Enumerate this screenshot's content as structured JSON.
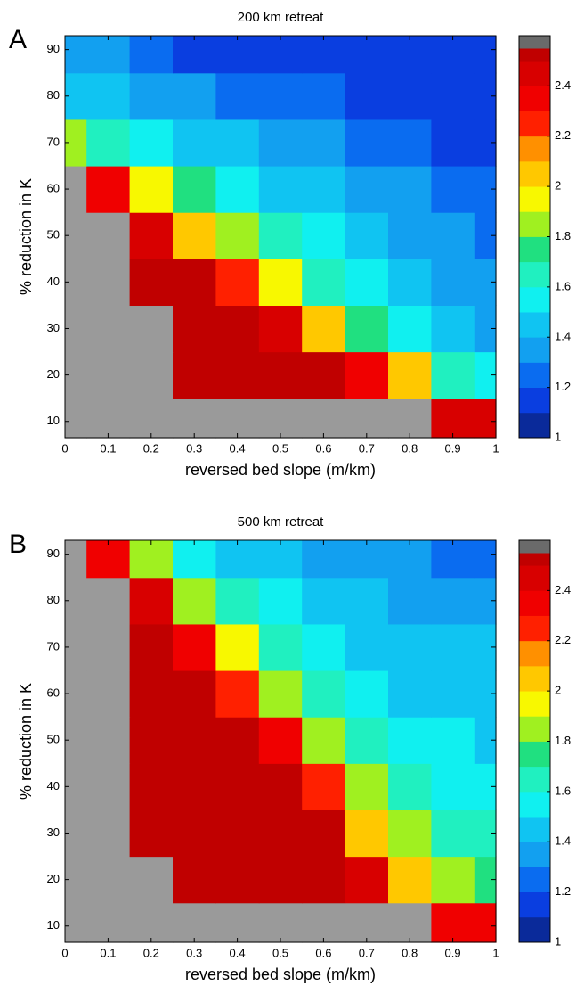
{
  "chart_data": [
    {
      "type": "contour",
      "panel_label": "A",
      "title": "200 km retreat",
      "x_label": "reversed bed slope (m/km)",
      "y_label": "% reduction in K",
      "x": [
        0,
        0.1,
        0.2,
        0.3,
        0.4,
        0.5,
        0.6,
        0.7,
        0.8,
        0.9,
        1
      ],
      "y": [
        10,
        20,
        30,
        40,
        50,
        60,
        70,
        80,
        90
      ],
      "z": [
        [
          2.6,
          2.6,
          2.6,
          2.6,
          2.6,
          2.6,
          2.6,
          2.6,
          2.6,
          2.4,
          2.4
        ],
        [
          2.6,
          2.6,
          2.6,
          2.52,
          2.52,
          2.52,
          2.52,
          2.3,
          2.0,
          1.6,
          1.5
        ],
        [
          2.6,
          2.6,
          2.6,
          2.52,
          2.52,
          2.4,
          2.0,
          1.7,
          1.5,
          1.4,
          1.3
        ],
        [
          2.6,
          2.6,
          2.52,
          2.52,
          2.2,
          1.9,
          1.6,
          1.5,
          1.4,
          1.3,
          1.3
        ],
        [
          2.6,
          2.6,
          2.4,
          2.0,
          1.8,
          1.6,
          1.5,
          1.4,
          1.3,
          1.3,
          1.2
        ],
        [
          2.6,
          2.3,
          1.9,
          1.7,
          1.5,
          1.4,
          1.4,
          1.3,
          1.3,
          1.2,
          1.2
        ],
        [
          1.8,
          1.6,
          1.5,
          1.4,
          1.4,
          1.3,
          1.3,
          1.2,
          1.2,
          1.1,
          1.1
        ],
        [
          1.4,
          1.4,
          1.3,
          1.3,
          1.2,
          1.2,
          1.2,
          1.1,
          1.1,
          1.1,
          1.1
        ],
        [
          1.3,
          1.3,
          1.2,
          1.1,
          1.1,
          1.1,
          1.1,
          1.1,
          1.1,
          1.1,
          1.1
        ]
      ],
      "xlim": [
        0,
        1
      ],
      "ylim": [
        6.5,
        93
      ],
      "xticks": [
        0,
        0.1,
        0.2,
        0.3,
        0.4,
        0.5,
        0.6,
        0.7,
        0.8,
        0.9,
        1
      ],
      "yticks": [
        10,
        20,
        30,
        40,
        50,
        60,
        70,
        80,
        90
      ],
      "colorbar": {
        "levels": [
          1,
          1.1,
          1.2,
          1.3,
          1.4,
          1.5,
          1.6,
          1.7,
          1.8,
          1.9,
          2,
          2.1,
          2.2,
          2.3,
          2.4,
          2.5,
          2.55,
          2.6
        ],
        "colors": [
          "#0a2a9a",
          "#0a3ee0",
          "#0a6cf0",
          "#12a0f0",
          "#10c4f2",
          "#10f0f0",
          "#20f0c0",
          "#20e080",
          "#a0f020",
          "#f8f800",
          "#ffc800",
          "#ff9000",
          "#ff2000",
          "#f00000",
          "#d80000",
          "#c00000",
          "#6a6a6a",
          "#9a9a9a"
        ],
        "ticks": [
          1,
          1.2,
          1.4,
          1.6,
          1.8,
          2,
          2.2,
          2.4
        ]
      }
    },
    {
      "type": "contour",
      "panel_label": "B",
      "title": "500 km retreat",
      "x_label": "reversed bed slope (m/km)",
      "y_label": "% reduction in K",
      "x": [
        0,
        0.1,
        0.2,
        0.3,
        0.4,
        0.5,
        0.6,
        0.7,
        0.8,
        0.9,
        1
      ],
      "y": [
        10,
        20,
        30,
        40,
        50,
        60,
        70,
        80,
        90
      ],
      "z": [
        [
          2.6,
          2.6,
          2.6,
          2.6,
          2.6,
          2.6,
          2.6,
          2.6,
          2.6,
          2.3,
          2.3
        ],
        [
          2.6,
          2.6,
          2.6,
          2.52,
          2.52,
          2.52,
          2.52,
          2.4,
          2.0,
          1.8,
          1.7
        ],
        [
          2.6,
          2.6,
          2.52,
          2.52,
          2.52,
          2.52,
          2.52,
          2.0,
          1.8,
          1.6,
          1.6
        ],
        [
          2.6,
          2.6,
          2.52,
          2.52,
          2.52,
          2.52,
          2.2,
          1.8,
          1.6,
          1.5,
          1.5
        ],
        [
          2.6,
          2.6,
          2.52,
          2.52,
          2.52,
          2.3,
          1.8,
          1.6,
          1.5,
          1.5,
          1.4
        ],
        [
          2.6,
          2.6,
          2.52,
          2.52,
          2.2,
          1.8,
          1.6,
          1.5,
          1.4,
          1.4,
          1.4
        ],
        [
          2.6,
          2.6,
          2.52,
          2.3,
          1.9,
          1.6,
          1.5,
          1.4,
          1.4,
          1.4,
          1.4
        ],
        [
          2.6,
          2.6,
          2.4,
          1.8,
          1.6,
          1.5,
          1.4,
          1.4,
          1.3,
          1.3,
          1.3
        ],
        [
          2.6,
          2.3,
          1.8,
          1.5,
          1.4,
          1.4,
          1.3,
          1.3,
          1.3,
          1.2,
          1.2
        ]
      ],
      "xlim": [
        0,
        1
      ],
      "ylim": [
        6.5,
        93
      ],
      "xticks": [
        0,
        0.1,
        0.2,
        0.3,
        0.4,
        0.5,
        0.6,
        0.7,
        0.8,
        0.9,
        1
      ],
      "yticks": [
        10,
        20,
        30,
        40,
        50,
        60,
        70,
        80,
        90
      ],
      "colorbar": {
        "levels": [
          1,
          1.1,
          1.2,
          1.3,
          1.4,
          1.5,
          1.6,
          1.7,
          1.8,
          1.9,
          2,
          2.1,
          2.2,
          2.3,
          2.4,
          2.5,
          2.55,
          2.6
        ],
        "colors": [
          "#0a2a9a",
          "#0a3ee0",
          "#0a6cf0",
          "#12a0f0",
          "#10c4f2",
          "#10f0f0",
          "#20f0c0",
          "#20e080",
          "#a0f020",
          "#f8f800",
          "#ffc800",
          "#ff9000",
          "#ff2000",
          "#f00000",
          "#d80000",
          "#c00000",
          "#6a6a6a",
          "#9a9a9a"
        ],
        "ticks": [
          1,
          1.2,
          1.4,
          1.6,
          1.8,
          2,
          2.2,
          2.4
        ]
      }
    }
  ]
}
